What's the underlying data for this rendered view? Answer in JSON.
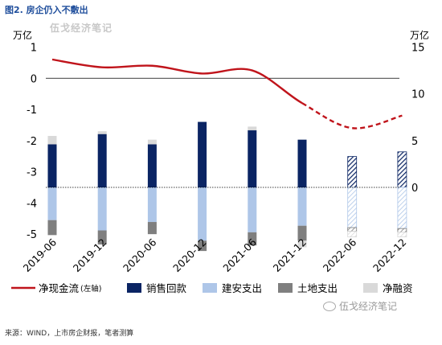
{
  "figure_title": "图2. 房企仍入不敷出",
  "watermark_top": "伍戈经济笔记",
  "watermark_bottom": "伍戈经济笔记",
  "watermark_icon": "wechat-icon",
  "source": "来源：WIND，上市房企财报，笔者测算",
  "chart_data": {
    "type": "bar",
    "left_axis": {
      "unit": "万亿",
      "ylim": [
        -5,
        1
      ],
      "ticks": [
        1,
        0,
        -1,
        -2,
        -3,
        -4,
        -5
      ]
    },
    "right_axis": {
      "unit": "万亿",
      "ylim": [
        -15,
        15
      ],
      "ticks": [
        15,
        10,
        5,
        0
      ]
    },
    "categories": [
      "2019-06",
      "2019-12",
      "2020-06",
      "2020-12",
      "2021-06",
      "2021-12",
      "2022-06",
      "2022-12"
    ],
    "bar_series": [
      {
        "name": "销售回款",
        "axis": "right",
        "color": "#0a2463",
        "values": [
          4.6,
          5.7,
          4.6,
          7.0,
          6.1,
          5.1,
          3.3,
          3.8
        ],
        "projected_from_index": 6
      },
      {
        "name": "建安支出",
        "axis": "right",
        "color": "#aec6e8",
        "values": [
          -3.5,
          -4.6,
          -3.7,
          -5.7,
          -4.8,
          -4.1,
          -4.3,
          -4.4
        ],
        "projected_from_index": 6
      },
      {
        "name": "土地支出",
        "axis": "right",
        "color": "#7f7f7f",
        "values": [
          -1.6,
          -1.5,
          -1.3,
          -1.1,
          -1.4,
          -1.6,
          -0.4,
          -0.4
        ],
        "projected_from_index": 6
      },
      {
        "name": "净融资",
        "axis": "right",
        "color": "#d9d9d9",
        "values": [
          0.9,
          0.3,
          0.5,
          0.0,
          0.4,
          -0.7,
          -0.6,
          -0.5
        ],
        "projected_from_index": 6
      }
    ],
    "line_series": {
      "name": "净现金流 (左轴)",
      "axis": "left",
      "color": "#c0141b",
      "values": [
        0.6,
        0.35,
        0.4,
        0.15,
        0.25,
        -0.8,
        -1.6,
        -1.2
      ],
      "dashed_from_index": 5
    },
    "legend": [
      {
        "label": "净现金流",
        "sub": "(左轴)",
        "kind": "line",
        "color": "#c0141b"
      },
      {
        "label": "销售回款",
        "kind": "box",
        "color": "#0a2463"
      },
      {
        "label": "建安支出",
        "kind": "box",
        "color": "#aec6e8"
      },
      {
        "label": "土地支出",
        "kind": "box",
        "color": "#7f7f7f"
      },
      {
        "label": "净融资",
        "kind": "box",
        "color": "#d9d9d9"
      }
    ],
    "legend_position": "bottom",
    "grid": false
  }
}
